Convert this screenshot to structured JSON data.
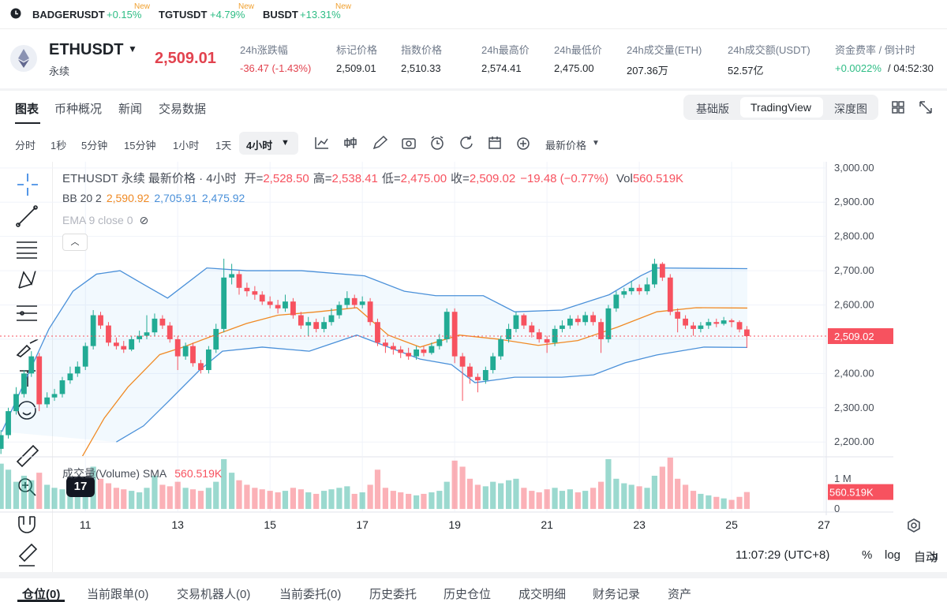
{
  "ticker_bar": [
    {
      "symbol": "BADGERUSDT",
      "change": "+0.15%",
      "badge": "New"
    },
    {
      "symbol": "TGTUSDT",
      "change": "+4.79%",
      "badge": "New"
    },
    {
      "symbol": "BUSDT",
      "change": "+13.31%",
      "badge": "New"
    }
  ],
  "header": {
    "symbol": "ETHUSDT",
    "subtitle": "永续",
    "price": "2,509.01",
    "stats": [
      {
        "label": "24h涨跌幅",
        "value": "-36.47 (-1.43%)"
      },
      {
        "label": "标记价格",
        "value": "2,509.01"
      },
      {
        "label": "指数价格",
        "value": "2,510.33"
      },
      {
        "label": "24h最高价",
        "value": "2,574.41"
      },
      {
        "label": "24h最低价",
        "value": "2,475.00"
      },
      {
        "label": "24h成交量(ETH)",
        "value": "207.36万"
      },
      {
        "label": "24h成交额(USDT)",
        "value": "52.57亿"
      },
      {
        "label": "资金费率 / 倒计时",
        "value": "+0.0022%",
        "value2": "/ 04:52:30"
      }
    ]
  },
  "tabs": [
    "图表",
    "币种概况",
    "新闻",
    "交易数据"
  ],
  "view_modes": [
    "基础版",
    "TradingView",
    "深度图"
  ],
  "intervals": [
    "分时",
    "1秒",
    "5分钟",
    "15分钟",
    "1小时",
    "1天",
    "4小时"
  ],
  "price_type": "最新价格",
  "chart_data": {
    "type": "candlestick",
    "legend": {
      "title": "ETHUSDT 永续 最新价格 · 4小时",
      "fields": [
        {
          "label": "开=",
          "value": "2,528.50"
        },
        {
          "label": "高=",
          "value": "2,538.41"
        },
        {
          "label": "低=",
          "value": "2,475.00"
        },
        {
          "label": "收=",
          "value": "2,509.02"
        }
      ],
      "change": "−19.48 (−0.77%)",
      "vol_label": "Vol",
      "vol_value": "560.519K"
    },
    "indicators": [
      {
        "name": "BB 20 2",
        "values": [
          "2,590.92",
          "2,705.91",
          "2,475.92"
        ]
      },
      {
        "name": "EMA 9 close 0"
      }
    ],
    "volume_legend": {
      "name": "成交量(Volume) SMA",
      "value": "560.519K"
    },
    "up_color": "#22ab94",
    "down_color": "#f7525f",
    "grid": true,
    "x": [
      9.17,
      9.33,
      9.5,
      9.67,
      9.83,
      10,
      10.17,
      10.33,
      10.5,
      10.67,
      10.83,
      11,
      11.17,
      11.33,
      11.5,
      11.67,
      11.83,
      12,
      12.17,
      12.33,
      12.5,
      12.67,
      12.83,
      13,
      13.17,
      13.33,
      13.5,
      13.67,
      13.83,
      14,
      14.17,
      14.33,
      14.5,
      14.67,
      14.83,
      15,
      15.17,
      15.33,
      15.5,
      15.67,
      15.83,
      16,
      16.17,
      16.33,
      16.5,
      16.67,
      16.83,
      17,
      17.17,
      17.33,
      17.5,
      17.67,
      17.83,
      18,
      18.17,
      18.33,
      18.5,
      18.67,
      18.83,
      19,
      19.17,
      19.33,
      19.5,
      19.67,
      19.83,
      20,
      20.17,
      20.33,
      20.5,
      20.67,
      20.83,
      21,
      21.17,
      21.33,
      21.5,
      21.67,
      21.83,
      22,
      22.17,
      22.33,
      22.5,
      22.67,
      22.83,
      23,
      23.17,
      23.33,
      23.5,
      23.67,
      23.83,
      24,
      24.17,
      24.33,
      24.5,
      24.67,
      24.83,
      25,
      25.17,
      25.33
    ],
    "open": [
      2180,
      2220,
      2290,
      2340,
      2400,
      2450,
      2310,
      2330,
      2340,
      2380,
      2400,
      2420,
      2480,
      2570,
      2540,
      2490,
      2480,
      2470,
      2500,
      2510,
      2520,
      2560,
      2540,
      2500,
      2450,
      2480,
      2430,
      2410,
      2470,
      2530,
      2680,
      2690,
      2650,
      2640,
      2630,
      2610,
      2600,
      2590,
      2610,
      2570,
      2540,
      2550,
      2530,
      2550,
      2570,
      2600,
      2620,
      2600,
      2610,
      2550,
      2490,
      2480,
      2470,
      2460,
      2450,
      2470,
      2460,
      2480,
      2500,
      2580,
      2450,
      2420,
      2390,
      2380,
      2410,
      2450,
      2500,
      2530,
      2570,
      2540,
      2520,
      2500,
      2490,
      2530,
      2540,
      2560,
      2550,
      2570,
      2550,
      2500,
      2590,
      2630,
      2640,
      2650,
      2640,
      2660,
      2720,
      2680,
      2580,
      2560,
      2540,
      2530,
      2540,
      2550,
      2545,
      2555,
      2550,
      2528.5
    ],
    "high": [
      2235,
      2300,
      2360,
      2410,
      2465,
      2460,
      2345,
      2355,
      2390,
      2420,
      2435,
      2490,
      2585,
      2580,
      2550,
      2505,
      2495,
      2510,
      2525,
      2570,
      2575,
      2570,
      2550,
      2510,
      2490,
      2490,
      2440,
      2480,
      2545,
      2735,
      2720,
      2700,
      2665,
      2655,
      2640,
      2625,
      2615,
      2630,
      2620,
      2580,
      2565,
      2560,
      2565,
      2590,
      2610,
      2640,
      2630,
      2625,
      2620,
      2560,
      2500,
      2490,
      2480,
      2475,
      2480,
      2480,
      2490,
      2515,
      2590,
      2590,
      2460,
      2430,
      2400,
      2420,
      2460,
      2510,
      2545,
      2580,
      2575,
      2550,
      2530,
      2510,
      2540,
      2555,
      2570,
      2570,
      2580,
      2580,
      2560,
      2600,
      2640,
      2650,
      2670,
      2660,
      2680,
      2735,
      2725,
      2690,
      2590,
      2570,
      2550,
      2550,
      2560,
      2560,
      2565,
      2560,
      2555,
      2538.41
    ],
    "low": [
      2165,
      2210,
      2280,
      2330,
      2390,
      2290,
      2300,
      2320,
      2330,
      2370,
      2390,
      2410,
      2470,
      2530,
      2480,
      2470,
      2460,
      2465,
      2490,
      2500,
      2510,
      2530,
      2490,
      2410,
      2440,
      2420,
      2400,
      2400,
      2460,
      2520,
      2660,
      2630,
      2625,
      2615,
      2600,
      2590,
      2575,
      2580,
      2560,
      2530,
      2510,
      2520,
      2520,
      2540,
      2560,
      2590,
      2590,
      2590,
      2540,
      2480,
      2460,
      2455,
      2445,
      2440,
      2440,
      2450,
      2455,
      2470,
      2490,
      2430,
      2320,
      2370,
      2345,
      2370,
      2400,
      2440,
      2490,
      2520,
      2530,
      2505,
      2490,
      2460,
      2480,
      2520,
      2530,
      2540,
      2540,
      2540,
      2460,
      2490,
      2580,
      2620,
      2630,
      2630,
      2630,
      2650,
      2670,
      2570,
      2520,
      2530,
      2510,
      2520,
      2530,
      2535,
      2540,
      2535,
      2520,
      2475
    ],
    "close": [
      2220,
      2290,
      2340,
      2400,
      2450,
      2310,
      2330,
      2340,
      2380,
      2400,
      2420,
      2480,
      2570,
      2540,
      2490,
      2480,
      2470,
      2500,
      2510,
      2520,
      2560,
      2540,
      2500,
      2450,
      2480,
      2430,
      2410,
      2470,
      2530,
      2680,
      2690,
      2650,
      2640,
      2630,
      2610,
      2600,
      2590,
      2610,
      2570,
      2540,
      2550,
      2530,
      2550,
      2570,
      2600,
      2620,
      2600,
      2610,
      2550,
      2490,
      2480,
      2470,
      2460,
      2450,
      2470,
      2460,
      2480,
      2500,
      2580,
      2450,
      2420,
      2390,
      2380,
      2410,
      2450,
      2500,
      2530,
      2570,
      2540,
      2520,
      2500,
      2490,
      2530,
      2540,
      2560,
      2550,
      2570,
      2550,
      2500,
      2590,
      2630,
      2640,
      2650,
      2640,
      2660,
      2720,
      2680,
      2580,
      2560,
      2540,
      2530,
      2540,
      2550,
      2545,
      2555,
      2550,
      2528.5,
      2509.02
    ],
    "volume": [
      1500000,
      1300000,
      900000,
      1100000,
      950000,
      1200000,
      800000,
      700000,
      650000,
      750000,
      900000,
      1050000,
      1400000,
      1000000,
      850000,
      700000,
      650000,
      600000,
      550000,
      700000,
      1100000,
      800000,
      750000,
      900000,
      700000,
      650000,
      600000,
      700000,
      900000,
      1650000,
      1200000,
      950000,
      800000,
      700000,
      650000,
      600000,
      550000,
      600000,
      700000,
      650000,
      550000,
      500000,
      600000,
      650000,
      700000,
      750000,
      500000,
      550000,
      800000,
      1300000,
      700000,
      600000,
      550000,
      500000,
      450000,
      500000,
      550000,
      600000,
      900000,
      1600000,
      1400000,
      1000000,
      800000,
      750000,
      900000,
      850000,
      950000,
      1000000,
      700000,
      600000,
      550000,
      650000,
      700000,
      600000,
      650000,
      550000,
      600000,
      700000,
      900000,
      1650000,
      1000000,
      850000,
      800000,
      750000,
      700000,
      1100000,
      1400000,
      1700000,
      1000000,
      800000,
      600000,
      500000,
      450000,
      400000,
      350000,
      300000,
      400000,
      560519
    ],
    "bb_upper": {
      "color": "#4a90d9",
      "x": [
        9.19,
        9.7,
        10.21,
        10.73,
        11.24,
        11.75,
        12.26,
        12.78,
        13.63,
        14.49,
        15.68,
        17.05,
        17.91,
        18.59,
        19.62,
        20.3,
        21.32,
        22.35,
        23.03,
        23.38,
        25.34
      ],
      "values": [
        2230,
        2380,
        2530,
        2640,
        2690,
        2700,
        2660,
        2620,
        2708,
        2700,
        2700,
        2685,
        2640,
        2627,
        2627,
        2580,
        2585,
        2630,
        2685,
        2708,
        2705.91
      ]
    },
    "bb_middle": {
      "color": "#f08a24",
      "x": [
        10.9,
        11.41,
        11.92,
        12.61,
        13.12,
        13.8,
        14.49,
        15.17,
        16.03,
        16.88,
        17.56,
        18.25,
        19.1,
        19.96,
        20.81,
        21.67,
        22.52,
        23.38,
        24.23,
        25.34
      ],
      "values": [
        2150,
        2270,
        2360,
        2455,
        2477,
        2512,
        2546,
        2570,
        2580,
        2592,
        2512,
        2477,
        2512,
        2500,
        2482,
        2496,
        2535,
        2580,
        2592,
        2590.92
      ]
    },
    "bb_lower": {
      "color": "#4a90d9",
      "x": [
        11.67,
        12.26,
        12.78,
        13.46,
        13.97,
        14.83,
        15.85,
        16.88,
        17.56,
        18.25,
        18.93,
        19.44,
        20.3,
        21.32,
        22.01,
        22.69,
        23.38,
        24.4,
        25.34
      ],
      "values": [
        2200,
        2247,
        2316,
        2408,
        2465,
        2477,
        2465,
        2512,
        2477,
        2442,
        2426,
        2373,
        2389,
        2389,
        2396,
        2431,
        2454,
        2477,
        2475.92
      ]
    },
    "xlim": [
      9.15,
      27.05
    ],
    "xticks": [
      11,
      13,
      15,
      17,
      19,
      21,
      23,
      25,
      27
    ],
    "ylim": [
      2159,
      3018
    ],
    "yticks": [
      {
        "value": 2200,
        "label": "2,200.00"
      },
      {
        "value": 2300,
        "label": "2,300.00"
      },
      {
        "value": 2400,
        "label": "2,400.00"
      },
      {
        "value": 2500,
        "label": "2,500.00"
      },
      {
        "value": 2600,
        "label": "2,600.00"
      },
      {
        "value": 2700,
        "label": "2,700.00"
      },
      {
        "value": 2800,
        "label": "2,800.00"
      },
      {
        "value": 2900,
        "label": "2,900.00"
      },
      {
        "value": 3000,
        "label": "3,000.00"
      }
    ],
    "volume_ylim": [
      -77000,
      1700000
    ],
    "volume_yticks": [
      0,
      {
        "value": 1000000,
        "label": "1 M"
      }
    ],
    "last_price": {
      "value": 2509.02,
      "label": "2,509.02"
    },
    "last_volume": {
      "value": 560519,
      "label": "560.519K"
    }
  },
  "status": {
    "time": "11:07:29 (UTC+8)",
    "options": [
      "%",
      "log",
      "自动"
    ]
  },
  "bottom_tabs": [
    "仓位(0)",
    "当前跟单(0)",
    "交易机器人(0)",
    "当前委托(0)",
    "历史委托",
    "历史仓位",
    "成交明细",
    "财务记录",
    "资产"
  ]
}
